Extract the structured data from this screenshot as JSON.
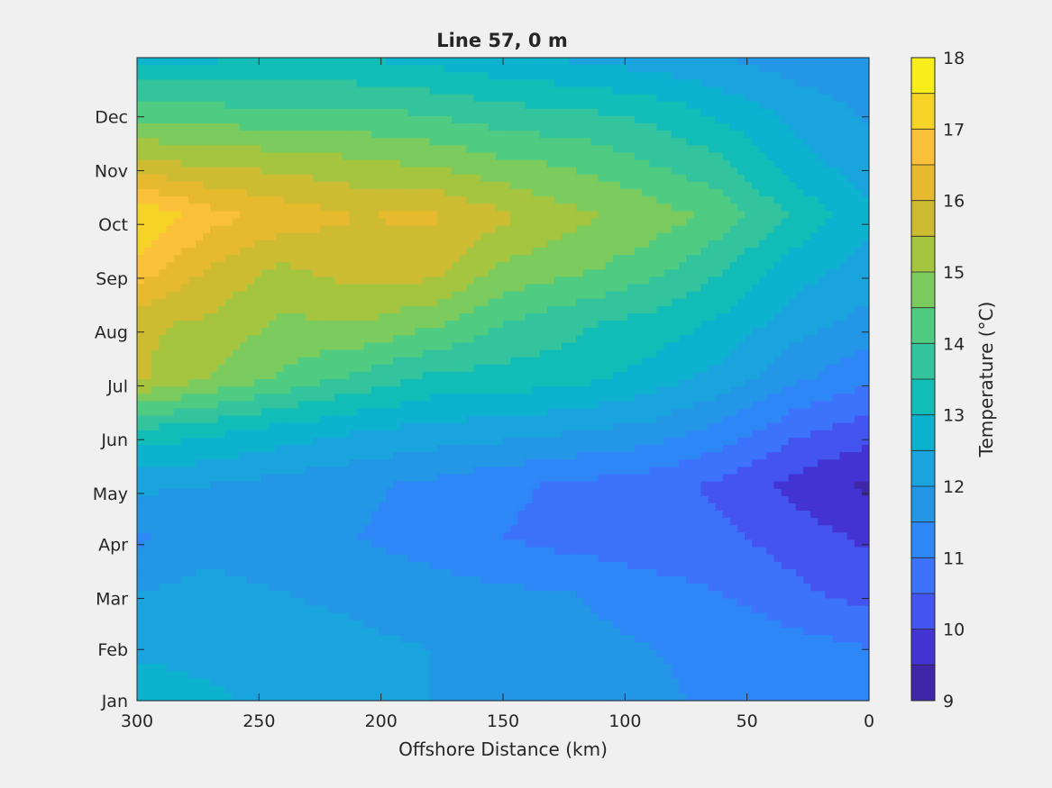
{
  "chart_data": {
    "type": "heatmap",
    "subtype": "filled-contour",
    "title": "Line 57, 0 m",
    "xlabel": "Offshore Distance (km)",
    "ylabel": "",
    "xlim": [
      0,
      300
    ],
    "x_reversed": true,
    "xticks": [
      300,
      250,
      200,
      150,
      100,
      50,
      0
    ],
    "xtick_labels": [
      "300",
      "250",
      "200",
      "150",
      "100",
      "50",
      "0"
    ],
    "ylim": [
      0,
      11.95
    ],
    "yticks": [
      0,
      0.95,
      1.9,
      2.9,
      3.85,
      4.85,
      5.85,
      6.85,
      7.85,
      8.85,
      9.85,
      10.85
    ],
    "ytick_labels": [
      "Jan",
      "Feb",
      "Mar",
      "Apr",
      "May",
      "Jun",
      "Jul",
      "Aug",
      "Sep",
      "Oct",
      "Nov",
      "Dec"
    ],
    "colorbar": {
      "label": "Temperature (°C)",
      "range": [
        9,
        18
      ],
      "ticks": [
        9,
        10,
        11,
        12,
        13,
        14,
        15,
        16,
        17,
        18
      ],
      "tick_labels": [
        "9",
        "10",
        "11",
        "12",
        "13",
        "14",
        "15",
        "16",
        "17",
        "18"
      ],
      "levels": [
        9,
        9.5,
        10,
        10.5,
        11,
        11.5,
        12,
        12.5,
        13,
        13.5,
        14,
        14.5,
        15,
        15.5,
        16,
        16.5,
        17,
        17.5,
        18
      ],
      "colors": [
        "#3e26a8",
        "#4233d2",
        "#4455ef",
        "#3d73fb",
        "#2e87f6",
        "#2396e6",
        "#1aa4dd",
        "#0db2cf",
        "#12bdb8",
        "#33c49e",
        "#4fcb82",
        "#7bcb5e",
        "#a5c43f",
        "#cdbc32",
        "#e6b92f",
        "#fbc03a",
        "#f5d327",
        "#f7ee1b"
      ]
    },
    "grid_distances_km": [
      300,
      270,
      240,
      210,
      180,
      150,
      120,
      90,
      60,
      30,
      0
    ],
    "grid_months": [
      0,
      1,
      2,
      3,
      4,
      5,
      6,
      7,
      8,
      9,
      10,
      11,
      11.95
    ],
    "temperature_grid": [
      [
        12.8,
        12.6,
        12.3,
        12.2,
        12.0,
        12.0,
        11.9,
        11.6,
        11.4,
        11.4,
        11.4
      ],
      [
        12.4,
        12.3,
        12.2,
        12.1,
        12.0,
        11.9,
        11.7,
        11.5,
        11.4,
        11.2,
        11.0
      ],
      [
        12.0,
        12.2,
        12.0,
        11.9,
        11.7,
        11.6,
        11.5,
        11.2,
        11.0,
        10.6,
        10.3
      ],
      [
        11.4,
        11.8,
        11.6,
        11.5,
        11.3,
        11.0,
        10.8,
        10.7,
        10.6,
        10.3,
        9.9
      ],
      [
        12.1,
        12.0,
        11.8,
        11.6,
        11.4,
        11.1,
        10.9,
        10.7,
        10.4,
        9.8,
        9.4
      ],
      [
        13.4,
        13.1,
        12.8,
        12.5,
        12.3,
        12.2,
        12.0,
        11.8,
        11.3,
        10.6,
        10.2
      ],
      [
        15.6,
        15.0,
        14.4,
        13.9,
        13.4,
        13.3,
        13.2,
        12.8,
        12.3,
        11.6,
        11.1
      ],
      [
        15.6,
        15.4,
        14.9,
        15.0,
        14.6,
        14.0,
        13.6,
        13.3,
        12.9,
        12.2,
        11.8
      ],
      [
        16.8,
        15.9,
        15.4,
        15.7,
        15.7,
        14.9,
        14.6,
        14.2,
        13.5,
        12.7,
        12.3
      ],
      [
        17.5,
        16.7,
        16.3,
        16.0,
        16.1,
        15.6,
        15.1,
        14.8,
        14.3,
        13.4,
        12.6
      ],
      [
        15.6,
        15.4,
        15.3,
        15.1,
        14.9,
        14.6,
        14.4,
        14.0,
        13.6,
        12.7,
        12.2
      ],
      [
        14.2,
        14.1,
        14.0,
        14.0,
        13.9,
        13.6,
        13.5,
        13.3,
        12.8,
        12.3,
        11.9
      ],
      [
        12.8,
        12.9,
        13.1,
        13.0,
        12.8,
        12.6,
        12.4,
        12.2,
        12.0,
        11.7,
        11.5
      ]
    ]
  }
}
